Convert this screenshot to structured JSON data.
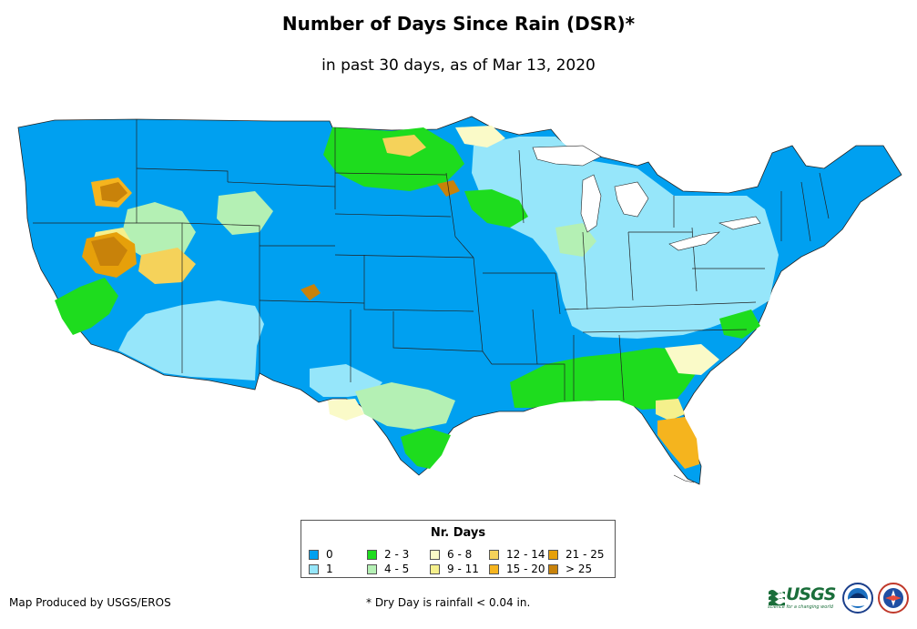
{
  "title": "Number of Days Since Rain (DSR)*",
  "subtitle": "in past 30 days, as of Mar 13, 2020",
  "legend": {
    "title": "Nr. Days",
    "items": [
      {
        "label": "0",
        "color": "#00a0f0"
      },
      {
        "label": "1",
        "color": "#96e6fa"
      },
      {
        "label": "2 - 3",
        "color": "#1edc1e"
      },
      {
        "label": "4 - 5",
        "color": "#b4f0b4"
      },
      {
        "label": "6 - 8",
        "color": "#fafac8"
      },
      {
        "label": "9 - 11",
        "color": "#f5f08c"
      },
      {
        "label": "12 - 14",
        "color": "#f5d25a"
      },
      {
        "label": "15 - 20",
        "color": "#f5b41e"
      },
      {
        "label": "21 - 25",
        "color": "#e6a00a"
      },
      {
        "label": "> 25",
        "color": "#c8820a"
      }
    ]
  },
  "credit": "Map Produced by USGS/EROS",
  "footnote": "* Dry Day is rainfall < 0.04 in.",
  "logos": {
    "usgs_text": "USGS",
    "usgs_tagline": "science for a changing world"
  }
}
